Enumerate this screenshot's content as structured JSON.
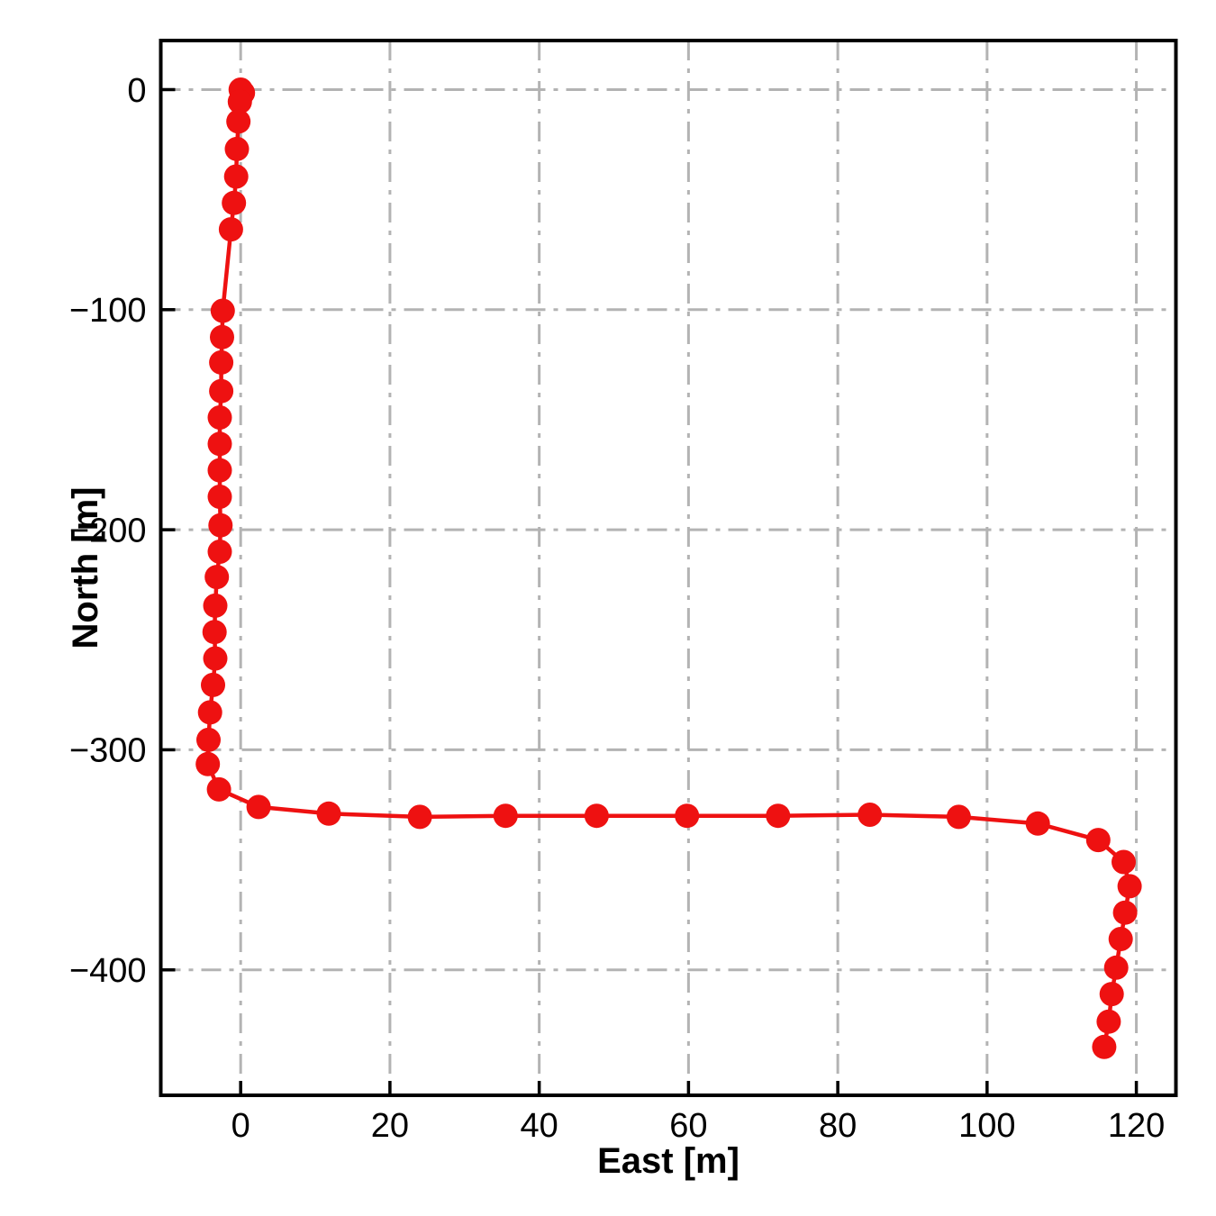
{
  "figure": {
    "background": "#ffffff",
    "title": ""
  },
  "colors": {
    "series_red": "#ee1111",
    "grid_gray": "#b3b3b3",
    "axis_black": "#000000"
  },
  "chart_data": {
    "type": "line",
    "title": "",
    "xlabel": "East [m]",
    "ylabel": "North [m]",
    "xlim": [
      -10.7,
      125.3
    ],
    "ylim": [
      -457,
      22.3
    ],
    "grid": {
      "visible": true,
      "style": "dash-dot",
      "color": "#b3b3b3"
    },
    "legend": {
      "visible": false
    },
    "x_ticks": {
      "values": [
        0,
        20,
        40,
        60,
        80,
        100,
        120
      ],
      "labels": [
        "0",
        "20",
        "40",
        "60",
        "80",
        "100",
        "120"
      ]
    },
    "y_ticks": {
      "values": [
        0,
        -100,
        -200,
        -300,
        -400
      ],
      "labels": [
        "0",
        "−100",
        "−200",
        "−300",
        "−400"
      ]
    },
    "series": [
      {
        "name": "trajectory",
        "marker": "circle",
        "color": "#ee1111",
        "points": [
          [
            0.0,
            0.0
          ],
          [
            0.3,
            -1.5
          ],
          [
            -0.1,
            -5.5
          ],
          [
            -0.3,
            -14.5
          ],
          [
            -0.5,
            -27.0
          ],
          [
            -0.6,
            -39.5
          ],
          [
            -0.9,
            -51.5
          ],
          [
            -1.3,
            -63.5
          ],
          [
            -2.4,
            -100.5
          ],
          [
            -2.5,
            -112.5
          ],
          [
            -2.6,
            -124.0
          ],
          [
            -2.6,
            -137.0
          ],
          [
            -2.8,
            -149.0
          ],
          [
            -2.8,
            -161.0
          ],
          [
            -2.8,
            -173.0
          ],
          [
            -2.8,
            -185.0
          ],
          [
            -2.7,
            -198.0
          ],
          [
            -2.8,
            -210.0
          ],
          [
            -3.2,
            -221.5
          ],
          [
            -3.4,
            -234.5
          ],
          [
            -3.5,
            -246.5
          ],
          [
            -3.4,
            -258.5
          ],
          [
            -3.7,
            -270.5
          ],
          [
            -4.1,
            -283.0
          ],
          [
            -4.3,
            -295.5
          ],
          [
            -4.4,
            -306.5
          ],
          [
            -2.9,
            -318.0
          ],
          [
            2.4,
            -326.0
          ],
          [
            11.8,
            -329.0
          ],
          [
            24.0,
            -330.5
          ],
          [
            35.5,
            -330.0
          ],
          [
            47.7,
            -330.0
          ],
          [
            59.8,
            -330.0
          ],
          [
            72.0,
            -330.0
          ],
          [
            84.3,
            -329.5
          ],
          [
            96.2,
            -330.5
          ],
          [
            106.8,
            -333.5
          ],
          [
            114.9,
            -341.0
          ],
          [
            118.3,
            -351.0
          ],
          [
            119.1,
            -362.0
          ],
          [
            118.5,
            -374.0
          ],
          [
            117.9,
            -386.0
          ],
          [
            117.3,
            -399.0
          ],
          [
            116.7,
            -411.0
          ],
          [
            116.3,
            -423.5
          ],
          [
            115.7,
            -435.0
          ]
        ]
      }
    ]
  }
}
